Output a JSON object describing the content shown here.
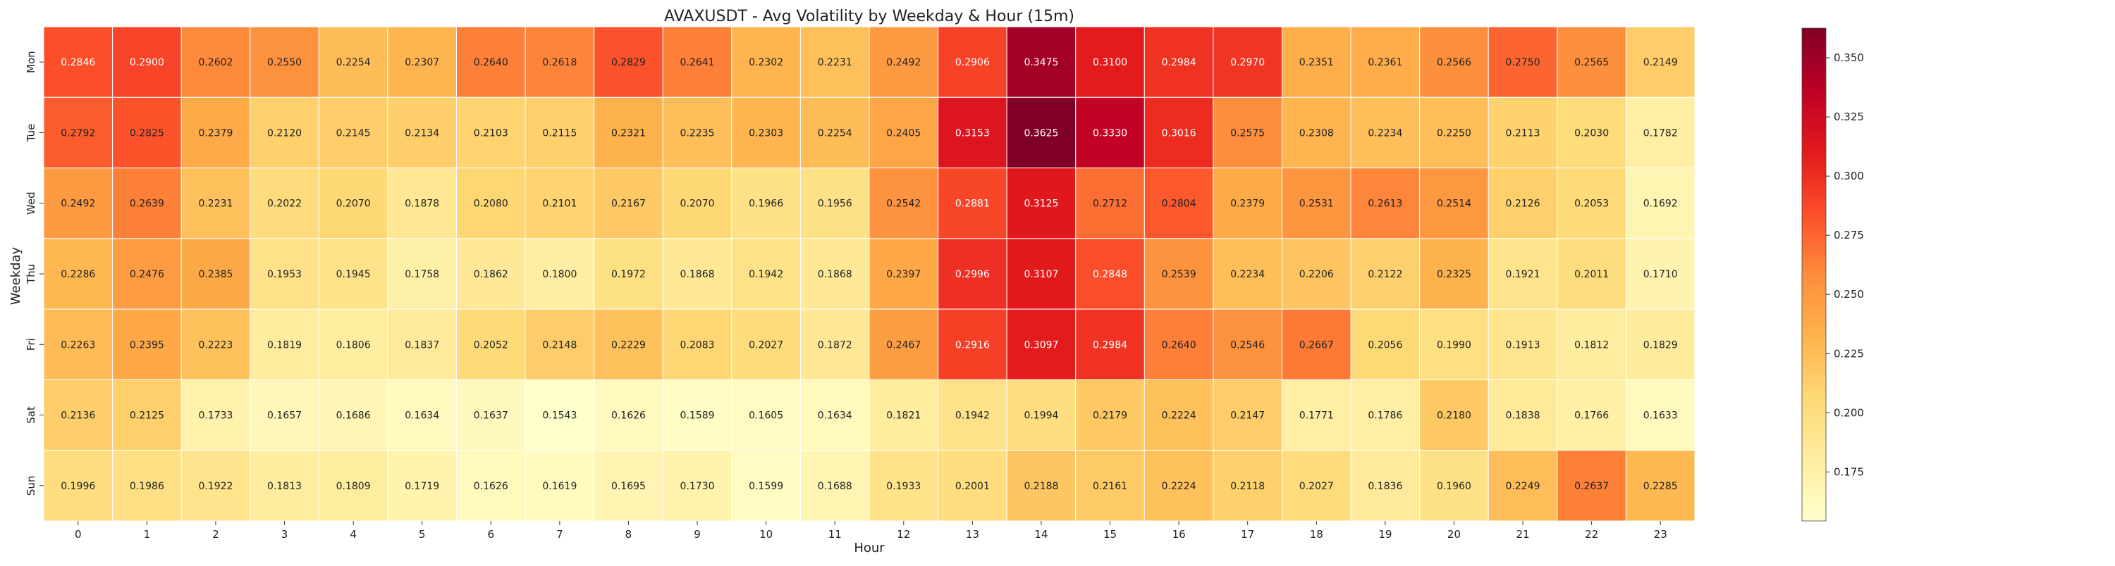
{
  "chart_data": {
    "type": "heatmap",
    "title": "AVAXUSDT - Avg Volatility by Weekday & Hour (15m)",
    "xlabel": "Hour",
    "ylabel": "Weekday",
    "x_categories": [
      "0",
      "1",
      "2",
      "3",
      "4",
      "5",
      "6",
      "7",
      "8",
      "9",
      "10",
      "11",
      "12",
      "13",
      "14",
      "15",
      "16",
      "17",
      "18",
      "19",
      "20",
      "21",
      "22",
      "23"
    ],
    "y_categories": [
      "Mon",
      "Tue",
      "Wed",
      "Thu",
      "Fri",
      "Sat",
      "Sun"
    ],
    "values": [
      [
        0.2846,
        0.29,
        0.2602,
        0.255,
        0.2254,
        0.2307,
        0.264,
        0.2618,
        0.2829,
        0.2641,
        0.2302,
        0.2231,
        0.2492,
        0.2906,
        0.3475,
        0.31,
        0.2984,
        0.297,
        0.2351,
        0.2361,
        0.2566,
        0.275,
        0.2565,
        0.2149
      ],
      [
        0.2792,
        0.2825,
        0.2379,
        0.212,
        0.2145,
        0.2134,
        0.2103,
        0.2115,
        0.2321,
        0.2235,
        0.2303,
        0.2254,
        0.2405,
        0.3153,
        0.3625,
        0.333,
        0.3016,
        0.2575,
        0.2308,
        0.2234,
        0.225,
        0.2113,
        0.203,
        0.1782
      ],
      [
        0.2492,
        0.2639,
        0.2231,
        0.2022,
        0.207,
        0.1878,
        0.208,
        0.2101,
        0.2167,
        0.207,
        0.1966,
        0.1956,
        0.2542,
        0.2881,
        0.3125,
        0.2712,
        0.2804,
        0.2379,
        0.2531,
        0.2613,
        0.2514,
        0.2126,
        0.2053,
        0.1692
      ],
      [
        0.2286,
        0.2476,
        0.2385,
        0.1953,
        0.1945,
        0.1758,
        0.1862,
        0.18,
        0.1972,
        0.1868,
        0.1942,
        0.1868,
        0.2397,
        0.2996,
        0.3107,
        0.2848,
        0.2539,
        0.2234,
        0.2206,
        0.2122,
        0.2325,
        0.1921,
        0.2011,
        0.171
      ],
      [
        0.2263,
        0.2395,
        0.2223,
        0.1819,
        0.1806,
        0.1837,
        0.2052,
        0.2148,
        0.2229,
        0.2083,
        0.2027,
        0.1872,
        0.2467,
        0.2916,
        0.3097,
        0.2984,
        0.264,
        0.2546,
        0.2667,
        0.2056,
        0.199,
        0.1913,
        0.1812,
        0.1829
      ],
      [
        0.2136,
        0.2125,
        0.1733,
        0.1657,
        0.1686,
        0.1634,
        0.1637,
        0.1543,
        0.1626,
        0.1589,
        0.1605,
        0.1634,
        0.1821,
        0.1942,
        0.1994,
        0.2179,
        0.2224,
        0.2147,
        0.1771,
        0.1786,
        0.218,
        0.1838,
        0.1766,
        0.1633
      ],
      [
        0.1996,
        0.1986,
        0.1922,
        0.1813,
        0.1809,
        0.1719,
        0.1626,
        0.1619,
        0.1695,
        0.173,
        0.1599,
        0.1688,
        0.1933,
        0.2001,
        0.2188,
        0.2161,
        0.2224,
        0.2118,
        0.2027,
        0.1836,
        0.196,
        0.2249,
        0.2637,
        0.2285
      ]
    ],
    "value_range": [
      0.1543,
      0.3625
    ],
    "colormap": "YlOrRd",
    "colors": [
      "#ffffcc",
      "#ffeda0",
      "#fed976",
      "#feb24c",
      "#fd8d3c",
      "#fc4e2a",
      "#e31a1c",
      "#bd0026",
      "#800026"
    ],
    "colorbar_ticks": [
      "0.175",
      "0.200",
      "0.225",
      "0.250",
      "0.275",
      "0.300",
      "0.325",
      "0.350"
    ],
    "legend": "colorbar right",
    "grid": false
  }
}
